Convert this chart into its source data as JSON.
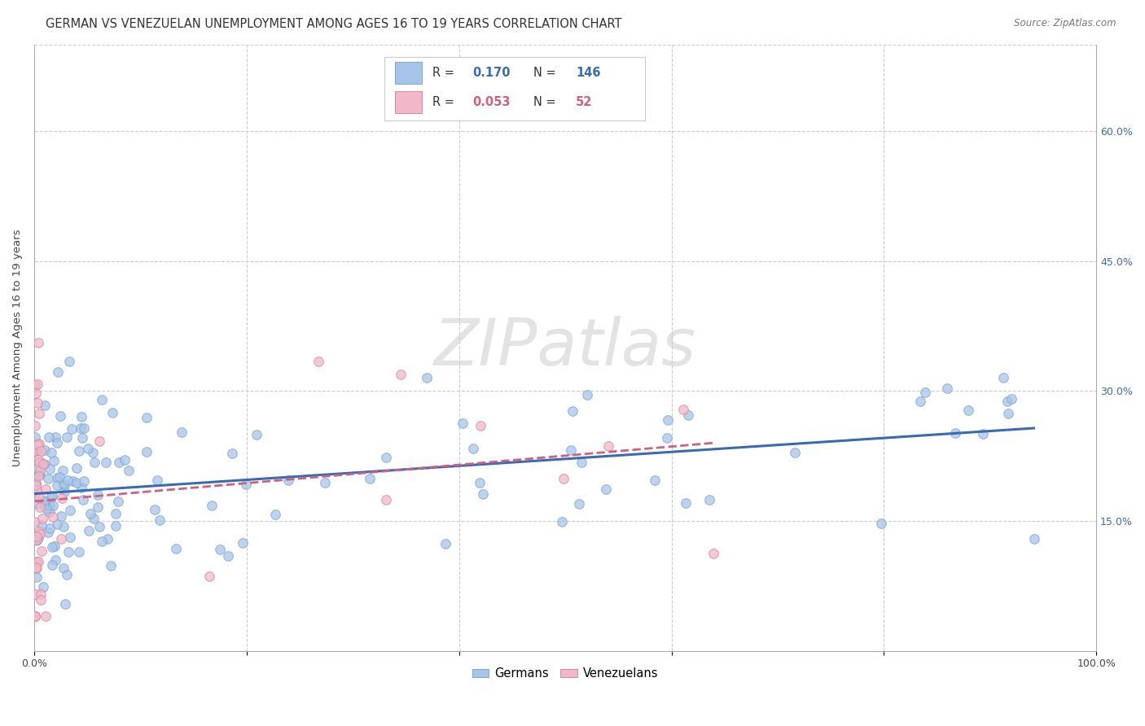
{
  "title": "GERMAN VS VENEZUELAN UNEMPLOYMENT AMONG AGES 16 TO 19 YEARS CORRELATION CHART",
  "source": "Source: ZipAtlas.com",
  "ylabel": "Unemployment Among Ages 16 to 19 years",
  "ytick_values": [
    0.15,
    0.3,
    0.45,
    0.6
  ],
  "ytick_labels": [
    "15.0%",
    "30.0%",
    "45.0%",
    "60.0%"
  ],
  "xlim": [
    0.0,
    1.0
  ],
  "ylim": [
    0.0,
    0.7
  ],
  "watermark": "ZIPatlas",
  "german_r": "0.170",
  "german_n": "146",
  "venezuelan_r": "0.053",
  "venezuelan_n": "52",
  "german_dot_color": "#a8c4e8",
  "german_edge_color": "#7aaad4",
  "german_line_color": "#3a6bb0",
  "venezuelan_dot_color": "#f0b8c8",
  "venezuelan_edge_color": "#d88aa0",
  "venezuelan_line_color": "#d06080",
  "legend_r_color_german": "#3a6bb0",
  "legend_r_color_venezuelan": "#d06080",
  "right_tick_color": "#3a6bb0",
  "background_color": "#ffffff",
  "title_fontsize": 10.5,
  "axis_fontsize": 9.5,
  "tick_fontsize": 9,
  "source_fontsize": 8.5
}
